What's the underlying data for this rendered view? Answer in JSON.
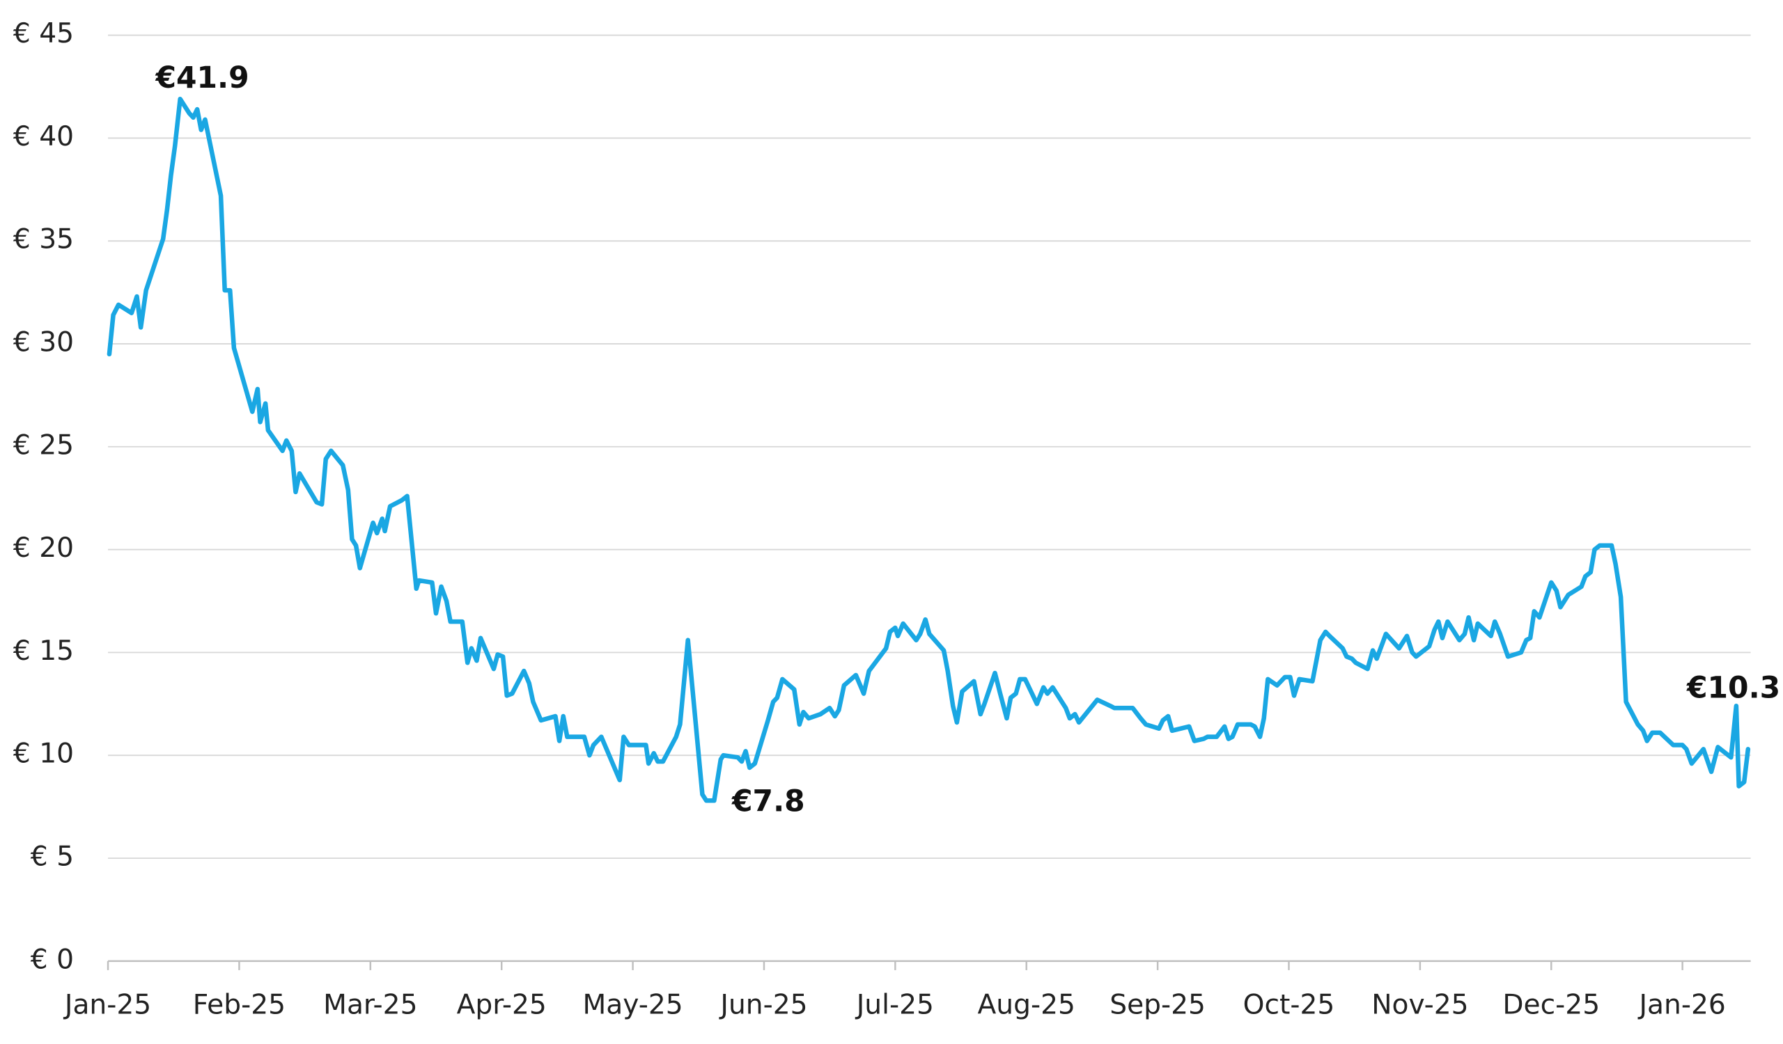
{
  "chart_data": {
    "type": "line",
    "color": "#1aa7e3",
    "grid": true,
    "xlim": [
      0,
      12.52
    ],
    "xticks": [
      {
        "value": 0,
        "label": "Jan-25"
      },
      {
        "value": 1,
        "label": "Feb-25"
      },
      {
        "value": 2,
        "label": "Mar-25"
      },
      {
        "value": 3,
        "label": "Apr-25"
      },
      {
        "value": 4,
        "label": "May-25"
      },
      {
        "value": 5,
        "label": "Jun-25"
      },
      {
        "value": 6,
        "label": "Jul-25"
      },
      {
        "value": 7,
        "label": "Aug-25"
      },
      {
        "value": 8,
        "label": "Sep-25"
      },
      {
        "value": 9,
        "label": "Oct-25"
      },
      {
        "value": 10,
        "label": "Nov-25"
      },
      {
        "value": 11,
        "label": "Dec-25"
      },
      {
        "value": 12,
        "label": "Jan-26"
      }
    ],
    "ylim": [
      0,
      45
    ],
    "yticks": [
      {
        "value": 0,
        "label": "€ 0"
      },
      {
        "value": 5,
        "label": "€ 5"
      },
      {
        "value": 10,
        "label": "€ 10"
      },
      {
        "value": 15,
        "label": "€ 15"
      },
      {
        "value": 20,
        "label": "€ 20"
      },
      {
        "value": 25,
        "label": "€ 25"
      },
      {
        "value": 30,
        "label": "€ 30"
      },
      {
        "value": 35,
        "label": "€ 35"
      },
      {
        "value": 40,
        "label": "€ 40"
      },
      {
        "value": 45,
        "label": "€ 45"
      }
    ],
    "annotations": [
      "€41.9",
      "€7.8",
      "€10.3"
    ],
    "x": [
      0.01,
      0.04,
      0.08,
      0.18,
      0.22,
      0.25,
      0.29,
      0.42,
      0.45,
      0.48,
      0.51,
      0.55,
      0.62,
      0.65,
      0.68,
      0.71,
      0.74,
      0.86,
      0.89,
      0.93,
      0.96,
      1.1,
      1.14,
      1.16,
      1.2,
      1.22,
      1.33,
      1.36,
      1.4,
      1.43,
      1.46,
      1.59,
      1.63,
      1.66,
      1.7,
      1.79,
      1.83,
      1.86,
      1.89,
      1.92,
      2.02,
      2.05,
      2.09,
      2.11,
      2.15,
      2.24,
      2.28,
      2.35,
      2.37,
      2.47,
      2.5,
      2.54,
      2.58,
      2.61,
      2.7,
      2.74,
      2.77,
      2.81,
      2.84,
      2.94,
      2.97,
      3.01,
      3.04,
      3.08,
      3.17,
      3.21,
      3.24,
      3.3,
      3.41,
      3.44,
      3.47,
      3.5,
      3.63,
      3.67,
      3.7,
      3.76,
      3.9,
      3.93,
      3.97,
      4.1,
      4.12,
      4.16,
      4.19,
      4.23,
      4.33,
      4.36,
      4.42,
      4.53,
      4.56,
      4.62,
      4.67,
      4.69,
      4.8,
      4.83,
      4.86,
      4.89,
      4.93,
      5.03,
      5.07,
      5.1,
      5.14,
      5.23,
      5.27,
      5.3,
      5.34,
      5.43,
      5.5,
      5.54,
      5.57,
      5.61,
      5.7,
      5.76,
      5.8,
      5.93,
      5.96,
      6.0,
      6.02,
      6.06,
      6.16,
      6.19,
      6.23,
      6.26,
      6.37,
      6.4,
      6.44,
      6.47,
      6.51,
      6.6,
      6.65,
      6.68,
      6.76,
      6.8,
      6.85,
      6.88,
      6.92,
      6.95,
      6.99,
      7.08,
      7.13,
      7.16,
      7.2,
      7.3,
      7.33,
      7.37,
      7.4,
      7.54,
      7.64,
      7.67,
      7.81,
      7.87,
      7.91,
      8.01,
      8.04,
      8.08,
      8.11,
      8.24,
      8.28,
      8.35,
      8.38,
      8.45,
      8.51,
      8.54,
      8.57,
      8.61,
      8.71,
      8.74,
      8.78,
      8.81,
      8.84,
      8.91,
      8.97,
      9.01,
      9.04,
      9.08,
      9.18,
      9.24,
      9.28,
      9.31,
      9.41,
      9.44,
      9.48,
      9.51,
      9.6,
      9.64,
      9.67,
      9.74,
      9.84,
      9.9,
      9.94,
      9.97,
      10.07,
      10.11,
      10.14,
      10.17,
      10.21,
      10.3,
      10.34,
      10.37,
      10.41,
      10.44,
      10.54,
      10.57,
      10.61,
      10.67,
      10.77,
      10.81,
      10.84,
      10.87,
      10.91,
      11.0,
      11.04,
      11.07,
      11.13,
      11.23,
      11.26,
      11.3,
      11.33,
      11.37,
      11.46,
      11.49,
      11.53,
      11.57,
      11.66,
      11.7,
      11.73,
      11.77,
      11.83,
      11.93,
      12.0,
      12.03,
      12.07,
      12.16,
      12.22,
      12.27,
      12.37,
      12.41,
      12.43,
      12.47,
      12.5
    ],
    "values": [
      29.5,
      31.4,
      31.9,
      31.5,
      32.3,
      30.8,
      32.6,
      35.1,
      36.5,
      38.2,
      39.6,
      41.9,
      41.2,
      41.0,
      41.4,
      40.4,
      40.9,
      37.2,
      32.6,
      32.6,
      29.8,
      26.7,
      27.8,
      26.2,
      27.1,
      25.8,
      24.8,
      25.3,
      24.8,
      22.8,
      23.7,
      22.3,
      22.2,
      24.4,
      24.8,
      24.1,
      22.9,
      20.5,
      20.2,
      19.1,
      21.3,
      20.8,
      21.5,
      20.9,
      22.1,
      22.4,
      22.6,
      18.1,
      18.5,
      18.4,
      16.9,
      18.2,
      17.5,
      16.5,
      16.5,
      14.5,
      15.2,
      14.6,
      15.7,
      14.2,
      14.9,
      14.8,
      12.9,
      13.0,
      14.1,
      13.5,
      12.6,
      11.7,
      11.9,
      10.7,
      11.9,
      10.9,
      10.9,
      10.0,
      10.5,
      10.9,
      8.8,
      10.9,
      10.5,
      10.5,
      9.6,
      10.1,
      9.7,
      9.7,
      10.9,
      11.5,
      15.6,
      8.1,
      7.8,
      7.8,
      9.8,
      10.0,
      9.9,
      9.7,
      10.2,
      9.4,
      9.6,
      11.7,
      12.6,
      12.8,
      13.7,
      13.2,
      11.5,
      12.1,
      11.8,
      12.0,
      12.3,
      11.9,
      12.2,
      13.4,
      13.9,
      13.0,
      14.1,
      15.2,
      16.0,
      16.2,
      15.8,
      16.4,
      15.6,
      15.9,
      16.6,
      15.9,
      15.1,
      14.1,
      12.4,
      11.6,
      13.1,
      13.6,
      12.0,
      12.5,
      14.0,
      13.0,
      11.8,
      12.8,
      13.0,
      13.7,
      13.7,
      12.5,
      13.3,
      13.0,
      13.3,
      12.3,
      11.8,
      12.0,
      11.6,
      12.7,
      12.4,
      12.3,
      12.3,
      11.8,
      11.5,
      11.3,
      11.7,
      11.9,
      11.2,
      11.4,
      10.7,
      10.8,
      10.9,
      10.9,
      11.4,
      10.8,
      10.9,
      11.5,
      11.5,
      11.4,
      10.9,
      11.8,
      13.7,
      13.4,
      13.8,
      13.8,
      12.9,
      13.7,
      13.6,
      15.6,
      16.0,
      15.8,
      15.2,
      14.8,
      14.7,
      14.5,
      14.2,
      15.1,
      14.7,
      15.9,
      15.2,
      15.8,
      15.0,
      14.8,
      15.3,
      16.1,
      16.5,
      15.7,
      16.5,
      15.6,
      15.9,
      16.7,
      15.6,
      16.4,
      15.8,
      16.5,
      15.9,
      14.8,
      15.0,
      15.6,
      15.7,
      17.0,
      16.7,
      18.4,
      18.0,
      17.2,
      17.8,
      18.2,
      18.7,
      18.9,
      20.0,
      20.2,
      20.2,
      19.3,
      17.7,
      12.6,
      11.5,
      11.2,
      10.7,
      11.1,
      11.1,
      10.5,
      10.5,
      10.3,
      9.6,
      10.3,
      9.2,
      10.4,
      9.9,
      12.4,
      8.5,
      8.7,
      10.3
    ]
  }
}
